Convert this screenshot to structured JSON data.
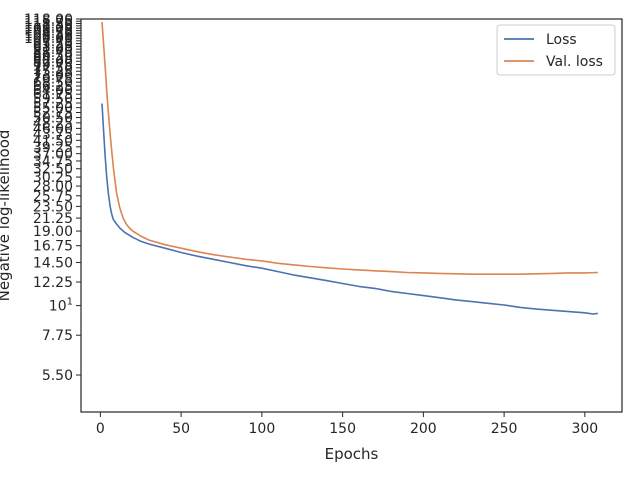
{
  "chart_data": {
    "type": "line",
    "xlabel": "Epochs",
    "ylabel": "Negative log-likelihood",
    "xlim": [
      -12,
      323
    ],
    "ylim": [
      4.0,
      118.0
    ],
    "yscale": "log",
    "grid": false,
    "legend_position": "top-right",
    "x_ticks": [
      0,
      50,
      100,
      150,
      200,
      250,
      300
    ],
    "y_ticks": [
      5.5,
      7.75,
      10,
      12.25,
      14.5,
      16.75,
      19,
      21.25,
      23.5,
      25.75,
      28,
      30.25,
      32.5,
      34.75,
      37,
      39.25,
      41.5,
      43.75,
      46,
      48.25,
      50.5,
      52.75,
      55,
      57.25,
      59.5,
      61.75,
      64,
      66.25,
      68.5,
      70.75,
      73,
      75.25,
      77.5,
      79.75,
      82,
      84.25,
      86.5,
      88.75,
      91,
      93.25,
      95.5,
      97.75,
      100,
      102.25,
      104.5,
      106.75,
      109,
      111.25,
      113.5,
      115.75,
      118
    ],
    "y_tick_labels": [
      "5.50",
      "7.75",
      "10^1",
      "12.25",
      "14.50",
      "16.75",
      "19.00",
      "21.25",
      "23.50",
      "25.75",
      "28.00",
      "30.25",
      "32.50",
      "34.75",
      "37.00",
      "39.25",
      "41.50",
      "43.75",
      "46.00",
      "48.25",
      "50.50",
      "52.75",
      "55.00",
      "57.25",
      "59.50",
      "61.75",
      "64.00",
      "66.25",
      "68.50",
      "70.75",
      "73.00",
      "75.25",
      "77.50",
      "79.75",
      "82.00",
      "84.25",
      "86.50",
      "88.75",
      "91.00",
      "93.25",
      "95.50",
      "97.75",
      "100.00",
      "102.25",
      "104.50",
      "106.75",
      "109.00",
      "111.25",
      "113.50",
      "115.75",
      "118.00"
    ],
    "series": [
      {
        "name": "Loss",
        "color": "#4c72b0",
        "x": [
          1,
          2,
          3,
          4,
          5,
          6,
          7,
          8,
          10,
          12,
          15,
          20,
          25,
          30,
          40,
          50,
          60,
          70,
          80,
          90,
          100,
          110,
          120,
          130,
          140,
          150,
          160,
          170,
          180,
          190,
          200,
          210,
          220,
          230,
          240,
          250,
          260,
          270,
          280,
          290,
          300,
          305,
          308
        ],
        "y": [
          57,
          45,
          36,
          30,
          26,
          23.5,
          22,
          21,
          20.2,
          19.5,
          18.8,
          18.0,
          17.4,
          17.0,
          16.4,
          15.8,
          15.3,
          14.9,
          14.5,
          14.1,
          13.8,
          13.4,
          13.0,
          12.7,
          12.4,
          12.1,
          11.8,
          11.6,
          11.3,
          11.1,
          10.9,
          10.7,
          10.5,
          10.35,
          10.2,
          10.05,
          9.85,
          9.7,
          9.6,
          9.5,
          9.4,
          9.3,
          9.35
        ]
      },
      {
        "name": "Val. loss",
        "color": "#dd8452",
        "x": [
          1,
          2,
          3,
          4,
          5,
          6,
          7,
          8,
          9,
          10,
          12,
          14,
          16,
          18,
          20,
          25,
          30,
          40,
          50,
          60,
          70,
          80,
          90,
          100,
          110,
          120,
          130,
          140,
          150,
          160,
          170,
          180,
          190,
          200,
          210,
          220,
          230,
          240,
          250,
          260,
          270,
          280,
          290,
          300,
          308
        ],
        "y": [
          115,
          95,
          78,
          63,
          52,
          44,
          38,
          33,
          29.5,
          26.5,
          23.2,
          21.3,
          20.2,
          19.5,
          19.0,
          18.2,
          17.6,
          16.9,
          16.4,
          15.9,
          15.5,
          15.2,
          14.9,
          14.7,
          14.4,
          14.2,
          14.0,
          13.85,
          13.7,
          13.6,
          13.5,
          13.4,
          13.3,
          13.25,
          13.2,
          13.15,
          13.1,
          13.1,
          13.1,
          13.1,
          13.15,
          13.2,
          13.25,
          13.25,
          13.3
        ]
      }
    ]
  }
}
